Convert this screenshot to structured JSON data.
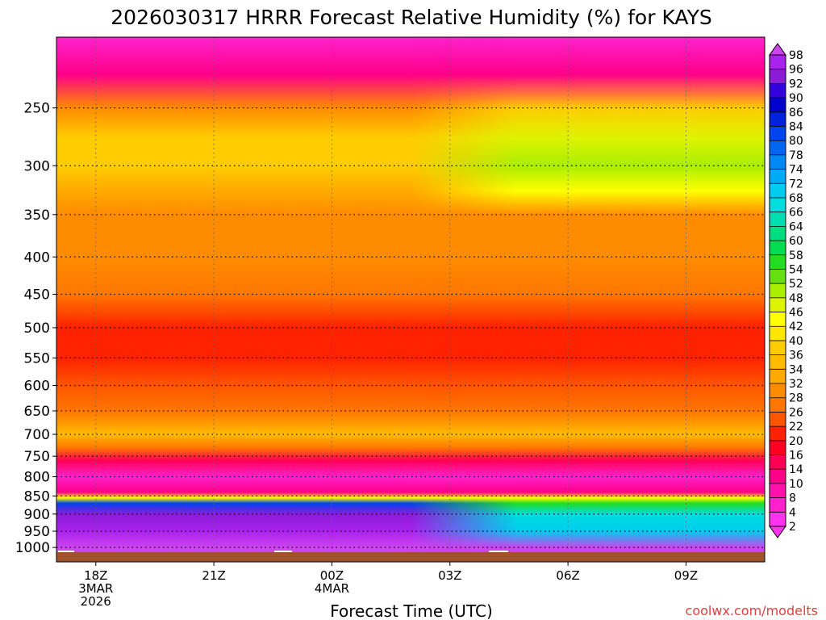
{
  "chart_data": {
    "type": "heatmap",
    "title": "2026030317 HRRR Forecast Relative Humidity (%) for KAYS",
    "xlabel": "Forecast Time (UTC)",
    "ylabel": "",
    "credit": "coolwx.com/modelts",
    "x_ticks": [
      {
        "hour": 0,
        "label": "18Z",
        "sub1": "3MAR",
        "sub2": "2026"
      },
      {
        "hour": 3,
        "label": "21Z",
        "sub1": "",
        "sub2": ""
      },
      {
        "hour": 6,
        "label": "00Z",
        "sub1": "4MAR",
        "sub2": ""
      },
      {
        "hour": 9,
        "label": "03Z",
        "sub1": "",
        "sub2": ""
      },
      {
        "hour": 12,
        "label": "06Z",
        "sub1": "",
        "sub2": ""
      },
      {
        "hour": 15,
        "label": "09Z",
        "sub1": "",
        "sub2": ""
      }
    ],
    "x_range_hours": [
      -1,
      17
    ],
    "y_levels_hpa": [
      250,
      300,
      350,
      400,
      450,
      500,
      550,
      600,
      650,
      700,
      750,
      800,
      850,
      900,
      950,
      1000
    ],
    "y_range_hpa": [
      200,
      1015
    ],
    "colorbar_labels": [
      "98",
      "96",
      "92",
      "90",
      "86",
      "84",
      "80",
      "78",
      "74",
      "72",
      "68",
      "66",
      "64",
      "60",
      "58",
      "54",
      "52",
      "48",
      "46",
      "42",
      "40",
      "36",
      "34",
      "32",
      "28",
      "26",
      "22",
      "20",
      "16",
      "14",
      "10",
      "8",
      "4",
      "2"
    ],
    "rh_profile": [
      {
        "p": 200,
        "rh": 6
      },
      {
        "p": 225,
        "rh": 11
      },
      {
        "p": 250,
        "rh": 28
      },
      {
        "p": 275,
        "rh": 36
      },
      {
        "p": 300,
        "rh": 38
      },
      {
        "p": 325,
        "rh": 33
      },
      {
        "p": 350,
        "rh": 30
      },
      {
        "p": 400,
        "rh": 30
      },
      {
        "p": 450,
        "rh": 26
      },
      {
        "p": 500,
        "rh": 21
      },
      {
        "p": 550,
        "rh": 20
      },
      {
        "p": 600,
        "rh": 23
      },
      {
        "p": 650,
        "rh": 27
      },
      {
        "p": 700,
        "rh": 34
      },
      {
        "p": 730,
        "rh": 26
      },
      {
        "p": 760,
        "rh": 15
      },
      {
        "p": 800,
        "rh": 5
      },
      {
        "p": 840,
        "rh": 12
      },
      {
        "p": 855,
        "rh": 45
      },
      {
        "p": 870,
        "rh": 80
      },
      {
        "p": 900,
        "rh": 92
      },
      {
        "p": 950,
        "rh": 97
      },
      {
        "p": 1000,
        "rh": 98
      }
    ],
    "later_time_adjustments": [
      {
        "p_min": 230,
        "p_max": 340,
        "hour_start": 8,
        "rh_delta": 10
      },
      {
        "p_min": 860,
        "p_max": 960,
        "hour_start": 9,
        "rh_delta": -26
      }
    ]
  },
  "colors": {
    "ground": "#a0522d",
    "surface_line": "#ffffff",
    "grid": "#000000",
    "credit": "#e04040"
  }
}
